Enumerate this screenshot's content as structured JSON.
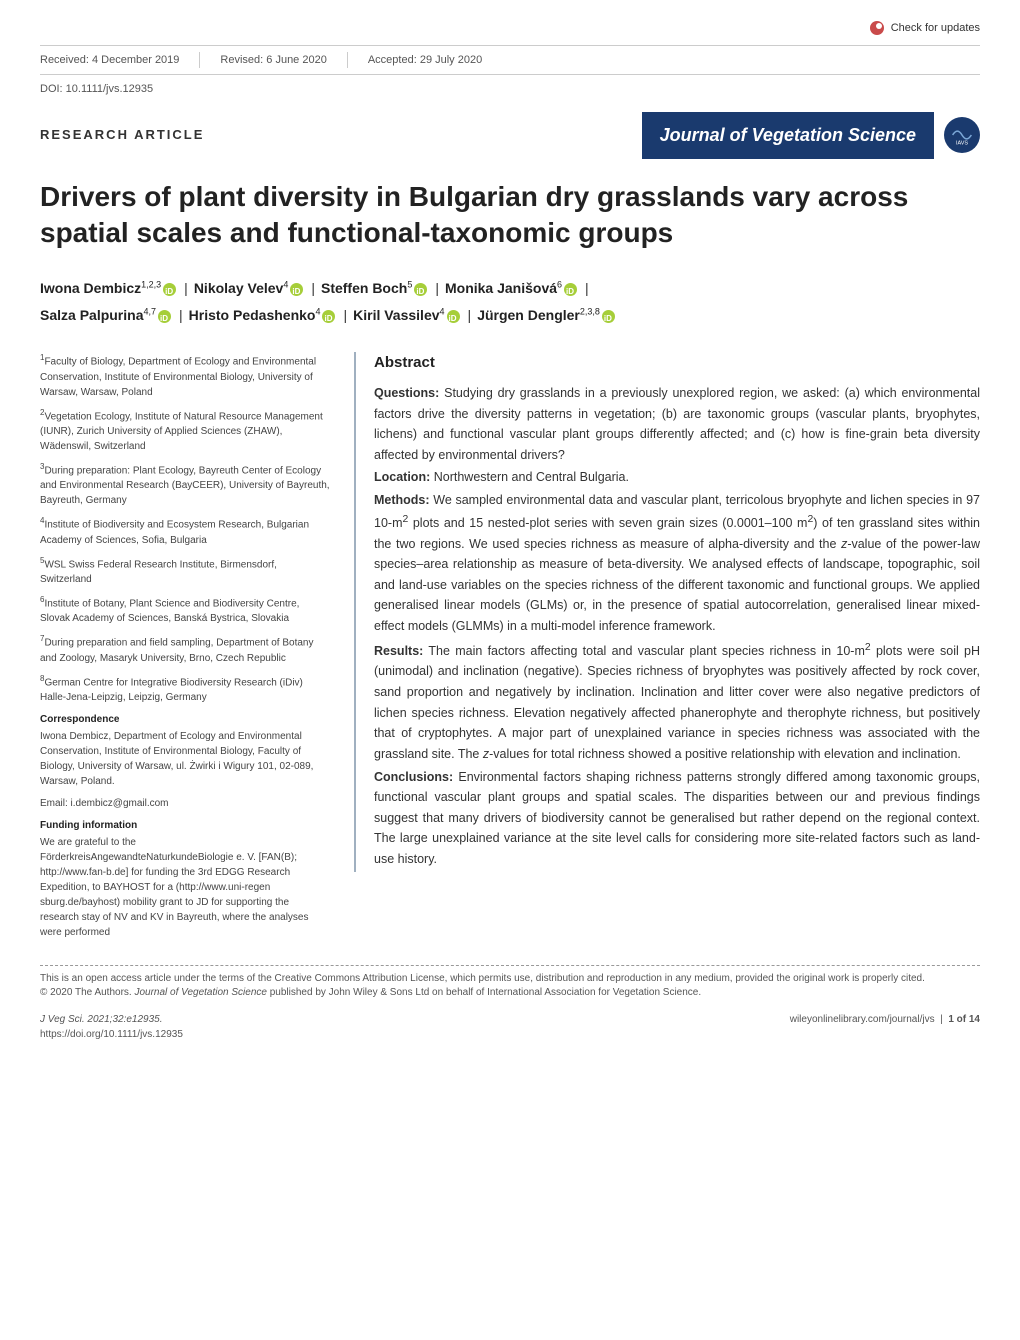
{
  "checkUpdates": "Check for updates",
  "meta": {
    "received": "Received: 4 December 2019",
    "revised": "Revised: 6 June 2020",
    "accepted": "Accepted: 29 July 2020"
  },
  "doi": "DOI: 10.1111/jvs.12935",
  "articleType": "RESEARCH ARTICLE",
  "journalName": "Journal of Vegetation Science",
  "journalLogoLabel": "IAVS",
  "title": "Drivers of plant diversity in Bulgarian dry grasslands vary across spatial scales and functional-taxonomic groups",
  "authors": [
    {
      "name": "Iwona Dembicz",
      "aff": "1,2,3",
      "orcid": true
    },
    {
      "name": "Nikolay Velev",
      "aff": "4",
      "orcid": true
    },
    {
      "name": "Steffen Boch",
      "aff": "5",
      "orcid": true
    },
    {
      "name": "Monika Janišová",
      "aff": "6",
      "orcid": true
    },
    {
      "name": "Salza Palpurina",
      "aff": "4,7",
      "orcid": true
    },
    {
      "name": "Hristo Pedashenko",
      "aff": "4",
      "orcid": true
    },
    {
      "name": "Kiril Vassilev",
      "aff": "4",
      "orcid": true
    },
    {
      "name": "Jürgen Dengler",
      "aff": "2,3,8",
      "orcid": true
    }
  ],
  "affiliations": [
    {
      "num": "1",
      "text": "Faculty of Biology, Department of Ecology and Environmental Conservation, Institute of Environmental Biology, University of Warsaw, Warsaw, Poland"
    },
    {
      "num": "2",
      "text": "Vegetation Ecology, Institute of Natural Resource Management (IUNR), Zurich University of Applied Sciences (ZHAW), Wädenswil, Switzerland"
    },
    {
      "num": "3",
      "text": "During preparation: Plant Ecology, Bayreuth Center of Ecology and Environmental Research (BayCEER), University of Bayreuth, Bayreuth, Germany"
    },
    {
      "num": "4",
      "text": "Institute of Biodiversity and Ecosystem Research, Bulgarian Academy of Sciences, Sofia, Bulgaria"
    },
    {
      "num": "5",
      "text": "WSL Swiss Federal Research Institute, Birmensdorf, Switzerland"
    },
    {
      "num": "6",
      "text": "Institute of Botany, Plant Science and Biodiversity Centre, Slovak Academy of Sciences, Banská Bystrica, Slovakia"
    },
    {
      "num": "7",
      "text": "During preparation and field sampling, Department of Botany and Zoology, Masaryk University, Brno, Czech Republic"
    },
    {
      "num": "8",
      "text": "German Centre for Integrative Biodiversity Research (iDiv) Halle-Jena-Leipzig, Leipzig, Germany"
    }
  ],
  "correspondence": {
    "head": "Correspondence",
    "body": "Iwona Dembicz, Department of Ecology and Environmental Conservation, Institute of Environmental Biology, Faculty of Biology, University of Warsaw, ul. Żwirki i Wigury 101, 02-089, Warsaw, Poland.",
    "email": "Email: i.dembicz@gmail.com"
  },
  "funding": {
    "head": "Funding information",
    "body": "We are grateful to the FörderkreisAngewandteNaturkundeBiologie e. V. [FAN(B); http://www.fan-b.de] for funding the 3rd EDGG Research Expedition, to BAYHOST for a (http://www.uni-regen sburg.de/bayhost) mobility grant to JD for supporting the research stay of NV and KV in Bayreuth, where the analyses were performed"
  },
  "abstract": {
    "head": "Abstract",
    "questions": "Studying dry grasslands in a previously unexplored region, we asked: (a) which environmental factors drive the diversity patterns in vegetation; (b) are taxonomic groups (vascular plants, bryophytes, lichens) and functional vascular plant groups differently affected; and (c) how is fine-grain beta diversity affected by environmental drivers?",
    "location": "Northwestern and Central Bulgaria.",
    "methods": "We sampled environmental data and vascular plant, terricolous bryophyte and lichen species in 97 10-m² plots and 15 nested-plot series with seven grain sizes (0.0001–100 m²) of ten grassland sites within the two regions. We used species richness as measure of alpha-diversity and the z-value of the power-law species–area relationship as measure of beta-diversity. We analysed effects of landscape, topographic, soil and land-use variables on the species richness of the different taxonomic and functional groups. We applied generalised linear models (GLMs) or, in the presence of spatial autocorrelation, generalised linear mixed-effect models (GLMMs) in a multi-model inference framework.",
    "results": "The main factors affecting total and vascular plant species richness in 10-m² plots were soil pH (unimodal) and inclination (negative). Species richness of bryophytes was positively affected by rock cover, sand proportion and negatively by inclination. Inclination and litter cover were also negative predictors of lichen species richness. Elevation negatively affected phanerophyte and therophyte richness, but positively that of cryptophytes. A major part of unexplained variance in species richness was associated with the grassland site. The z-values for total richness showed a positive relationship with elevation and inclination.",
    "conclusions": "Environmental factors shaping richness patterns strongly differed among taxonomic groups, functional vascular plant groups and spatial scales. The disparities between our and previous findings suggest that many drivers of biodiversity cannot be generalised but rather depend on the regional context. The large unexplained variance at the site level calls for considering more site-related factors such as land-use history."
  },
  "license": {
    "line1": "This is an open access article under the terms of the Creative Commons Attribution License, which permits use, distribution and reproduction in any medium, provided the original work is properly cited.",
    "line2": "© 2020 The Authors. Journal of Vegetation Science published by John Wiley & Sons Ltd on behalf of International Association for Vegetation Science."
  },
  "footer": {
    "leftTop": "J Veg Sci. 2021;32:e12935.",
    "leftBottom": "https://doi.org/10.1111/jvs.12935",
    "rightTop": "wileyonlinelibrary.com/journal/jvs",
    "rightPage": "1 of 14"
  },
  "labels": {
    "questions": "Questions:",
    "location": "Location:",
    "methods": "Methods:",
    "results": "Results:",
    "conclusions": "Conclusions:"
  },
  "colors": {
    "journalBanner": "#1a3a6e",
    "orcid": "#a6ce39",
    "abstractBorder": "#a0b0c0",
    "checkUpdatesIcon": "#c94a4a"
  }
}
